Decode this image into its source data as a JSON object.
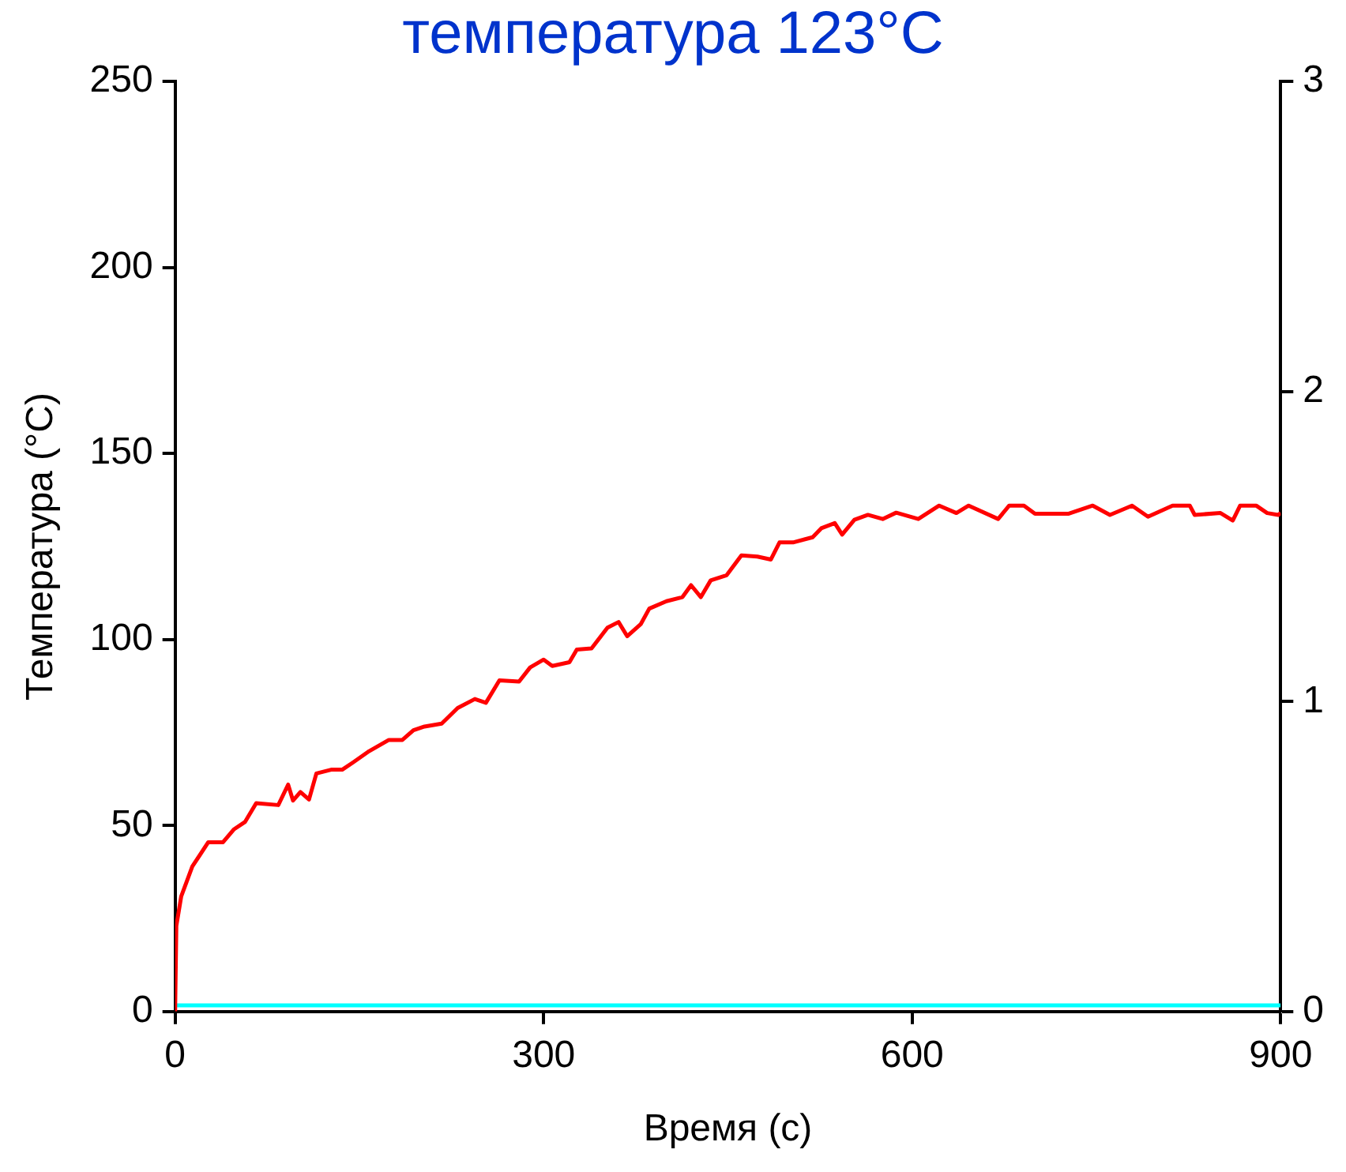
{
  "chart_data": {
    "type": "line",
    "title": "температура 123°C",
    "xlabel": "Время (с)",
    "ylabel": "Температура (°C)",
    "xlim": [
      0,
      900
    ],
    "xticks": [
      0,
      300,
      600,
      900
    ],
    "ylim": [
      0,
      250
    ],
    "yticks": [
      0,
      50,
      100,
      150,
      200,
      250
    ],
    "y2lim": [
      0,
      3
    ],
    "y2ticks": [
      0,
      1,
      2,
      3
    ],
    "grid": false,
    "legend": false,
    "series": [
      {
        "color": "#ff0000",
        "x": [
          0,
          1,
          5,
          14,
          27,
          39,
          48,
          57,
          66,
          84,
          92,
          96,
          102,
          109,
          115,
          127,
          136,
          145,
          158,
          174,
          185,
          194,
          203,
          217,
          230,
          244,
          253,
          264,
          280,
          289,
          300,
          307,
          321,
          327,
          339,
          352,
          361,
          368,
          379,
          386,
          400,
          413,
          420,
          428,
          436,
          449,
          461,
          474,
          485,
          492,
          503,
          519,
          526,
          537,
          543,
          553,
          564,
          576,
          587,
          605,
          622,
          636,
          646,
          670,
          679,
          691,
          700,
          727,
          747,
          761,
          779,
          792,
          812,
          826,
          830,
          851,
          861,
          867,
          880,
          889,
          898,
          900
        ],
        "values": [
          0,
          23,
          31,
          39,
          45.5,
          45.5,
          49,
          51,
          56,
          55.5,
          61,
          56.7,
          59,
          57,
          64,
          65,
          65,
          67,
          70,
          73,
          73,
          75.6,
          76.6,
          77.4,
          81.6,
          84,
          83,
          89,
          88.7,
          92.5,
          94.6,
          92.9,
          93.9,
          97.3,
          97.6,
          103.2,
          104.7,
          100.9,
          104.1,
          108.3,
          110.3,
          111.4,
          114.6,
          111.4,
          115.9,
          117.3,
          122.6,
          122.3,
          121.5,
          126.1,
          126.1,
          127.5,
          129.9,
          131.3,
          128.2,
          132.2,
          133.5,
          132.4,
          134.1,
          132.4,
          136,
          134,
          136,
          132.4,
          136,
          136,
          133.8,
          133.8,
          136,
          133.5,
          136,
          133,
          136,
          136,
          133.5,
          134,
          132,
          136,
          136,
          134,
          133.5,
          134
        ]
      },
      {
        "color": "#00ffff",
        "axis": "y2",
        "x": [
          0,
          900
        ],
        "values": [
          0.02,
          0.02
        ]
      }
    ]
  }
}
